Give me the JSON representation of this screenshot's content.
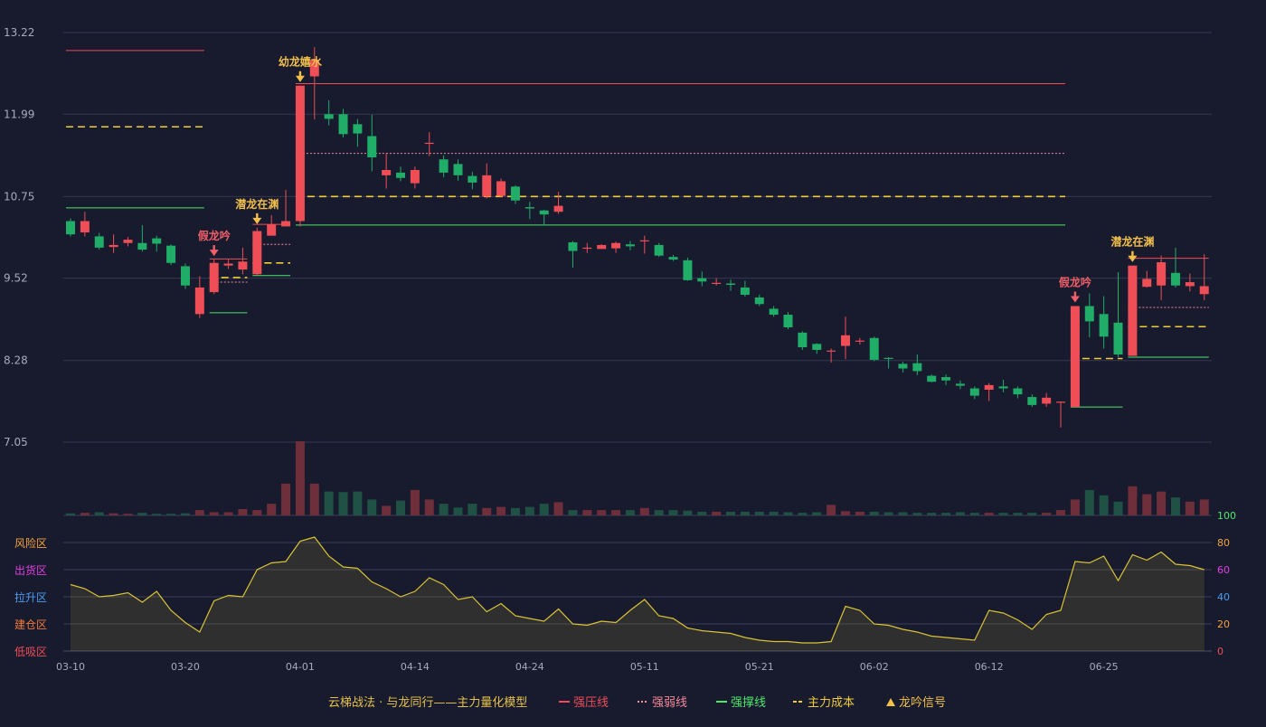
{
  "chart_data": {
    "type": "candlestick",
    "subtitle": "云梯战法 · 与龙同行——主力量化模型",
    "price_axis": {
      "ticks": [
        "13.22",
        "11.99",
        "10.75",
        "9.52",
        "8.28",
        "7.05"
      ],
      "range": [
        7.05,
        13.22
      ]
    },
    "date_labels": [
      "03-10",
      "03-20",
      "04-01",
      "04-14",
      "04-24",
      "05-11",
      "05-21",
      "06-02",
      "06-12",
      "06-25"
    ],
    "date_label_index": [
      0,
      8,
      16,
      24,
      32,
      40,
      48,
      56,
      64,
      72
    ],
    "candles": [
      [
        10.38,
        10.18,
        10.15,
        10.42
      ],
      [
        10.21,
        10.38,
        10.15,
        10.52
      ],
      [
        10.15,
        9.98,
        9.95,
        10.2
      ],
      [
        9.99,
        10.02,
        9.9,
        10.18
      ],
      [
        10.05,
        10.1,
        10.0,
        10.14
      ],
      [
        10.05,
        9.95,
        9.92,
        10.32
      ],
      [
        10.12,
        10.04,
        9.92,
        10.16
      ],
      [
        10.01,
        9.75,
        9.72,
        10.03
      ],
      [
        9.7,
        9.41,
        9.36,
        9.74
      ],
      [
        8.98,
        9.38,
        8.92,
        9.55
      ],
      [
        9.31,
        9.75,
        9.28,
        9.8
      ],
      [
        9.71,
        9.74,
        9.66,
        9.8
      ],
      [
        9.65,
        9.77,
        9.58,
        9.98
      ],
      [
        9.58,
        10.23,
        9.56,
        10.28
      ],
      [
        10.16,
        10.33,
        10.16,
        10.47
      ],
      [
        10.3,
        10.38,
        10.3,
        10.85
      ],
      [
        10.38,
        12.42,
        10.3,
        12.42
      ],
      [
        12.56,
        12.81,
        11.91,
        13.0
      ],
      [
        11.99,
        11.92,
        11.82,
        12.2
      ],
      [
        11.99,
        11.69,
        11.64,
        12.07
      ],
      [
        11.84,
        11.7,
        11.5,
        11.92
      ],
      [
        11.66,
        11.34,
        11.13,
        11.98
      ],
      [
        11.07,
        11.15,
        10.87,
        11.4
      ],
      [
        11.11,
        11.03,
        10.98,
        11.2
      ],
      [
        10.95,
        11.15,
        10.87,
        11.2
      ],
      [
        11.55,
        11.56,
        11.36,
        11.72
      ],
      [
        11.31,
        11.11,
        11.04,
        11.37
      ],
      [
        11.24,
        11.07,
        10.99,
        11.31
      ],
      [
        11.06,
        10.96,
        10.86,
        11.12
      ],
      [
        10.75,
        11.07,
        10.72,
        11.25
      ],
      [
        10.76,
        10.98,
        10.74,
        11.02
      ],
      [
        10.9,
        10.69,
        10.64,
        10.92
      ],
      [
        10.59,
        10.57,
        10.41,
        10.67
      ],
      [
        10.54,
        10.48,
        10.31,
        10.55
      ],
      [
        10.52,
        10.61,
        10.49,
        10.82
      ],
      [
        10.06,
        9.93,
        9.68,
        10.08
      ],
      [
        9.98,
        9.98,
        9.9,
        10.05
      ],
      [
        9.96,
        10.02,
        9.98,
        10.03
      ],
      [
        9.97,
        10.05,
        9.9,
        10.07
      ],
      [
        10.03,
        10.0,
        9.94,
        10.08
      ],
      [
        10.09,
        10.09,
        9.89,
        10.16
      ],
      [
        10.02,
        9.86,
        9.84,
        10.05
      ],
      [
        9.84,
        9.8,
        9.78,
        9.87
      ],
      [
        9.79,
        9.49,
        9.48,
        9.83
      ],
      [
        9.52,
        9.47,
        9.4,
        9.62
      ],
      [
        9.44,
        9.45,
        9.41,
        9.52
      ],
      [
        9.44,
        9.42,
        9.33,
        9.5
      ],
      [
        9.38,
        9.27,
        9.24,
        9.48
      ],
      [
        9.23,
        9.13,
        9.1,
        9.27
      ],
      [
        9.06,
        8.97,
        8.94,
        9.1
      ],
      [
        8.97,
        8.78,
        8.75,
        9.01
      ],
      [
        8.7,
        8.48,
        8.44,
        8.72
      ],
      [
        8.53,
        8.44,
        8.38,
        8.54
      ],
      [
        8.43,
        8.43,
        8.25,
        8.46
      ],
      [
        8.5,
        8.66,
        8.3,
        8.94
      ],
      [
        8.57,
        8.58,
        8.52,
        8.62
      ],
      [
        8.62,
        8.29,
        8.27,
        8.64
      ],
      [
        8.32,
        8.31,
        8.16,
        8.33
      ],
      [
        8.23,
        8.16,
        8.1,
        8.26
      ],
      [
        8.24,
        8.12,
        8.06,
        8.37
      ],
      [
        8.05,
        7.96,
        7.95,
        8.07
      ],
      [
        8.03,
        7.98,
        7.91,
        8.07
      ],
      [
        7.93,
        7.9,
        7.85,
        7.98
      ],
      [
        7.86,
        7.75,
        7.7,
        7.89
      ],
      [
        7.84,
        7.91,
        7.67,
        7.94
      ],
      [
        7.89,
        7.86,
        7.8,
        7.99
      ],
      [
        7.86,
        7.77,
        7.71,
        7.89
      ],
      [
        7.73,
        7.61,
        7.58,
        7.77
      ],
      [
        7.63,
        7.72,
        7.58,
        7.79
      ],
      [
        7.66,
        7.66,
        7.27,
        7.66
      ],
      [
        7.58,
        9.1,
        7.58,
        9.1
      ],
      [
        9.1,
        8.87,
        8.63,
        9.29
      ],
      [
        8.98,
        8.64,
        8.46,
        9.25
      ],
      [
        8.85,
        8.37,
        8.33,
        9.61
      ],
      [
        8.35,
        9.71,
        8.35,
        9.71
      ],
      [
        9.39,
        9.51,
        9.38,
        9.63
      ],
      [
        9.41,
        9.76,
        9.19,
        9.86
      ],
      [
        9.6,
        9.41,
        9.38,
        9.98
      ],
      [
        9.4,
        9.46,
        9.32,
        9.59
      ],
      [
        9.28,
        9.4,
        9.19,
        9.88
      ]
    ],
    "volume": [
      4,
      5,
      6,
      4,
      3,
      5,
      3,
      3,
      4,
      10,
      6,
      6,
      12,
      10,
      22,
      60,
      140,
      60,
      45,
      44,
      45,
      30,
      18,
      28,
      48,
      30,
      22,
      15,
      22,
      14,
      16,
      14,
      16,
      22,
      25,
      10,
      10,
      10,
      10,
      10,
      14,
      10,
      10,
      9,
      7,
      7,
      7,
      7,
      7,
      7,
      6,
      5,
      6,
      20,
      8,
      7,
      7,
      6,
      6,
      5,
      5,
      5,
      6,
      5,
      5,
      5,
      5,
      5,
      5,
      10,
      30,
      48,
      38,
      26,
      55,
      40,
      45,
      34,
      26,
      30
    ],
    "indicator_axis_right": [
      "100",
      "80",
      "60",
      "40",
      "20",
      "0"
    ],
    "indicator_zones": [
      "风险区",
      "出货区",
      "拉升区",
      "建仓区",
      "低吸区"
    ],
    "indicator_values": [
      49,
      46,
      40,
      41,
      43,
      36,
      44,
      30,
      21,
      14,
      37,
      41,
      40,
      60,
      65,
      66,
      81,
      84,
      70,
      62,
      61,
      51,
      46,
      40,
      44,
      54,
      49,
      38,
      40,
      29,
      35,
      26,
      24,
      22,
      31,
      20,
      19,
      22,
      21,
      30,
      38,
      26,
      24,
      17,
      15,
      14,
      13,
      10,
      8,
      7,
      7,
      6,
      6,
      7,
      33,
      30,
      20,
      19,
      16,
      14,
      11,
      10,
      9,
      8,
      30,
      28,
      23,
      16,
      27,
      30,
      66,
      65,
      70,
      52,
      71,
      67,
      73,
      64,
      63,
      60
    ],
    "signals": [
      {
        "label": "假龙吟",
        "index": 10,
        "color": "#ef5f68"
      },
      {
        "label": "潜龙在渊",
        "index": 13,
        "color": "#f2c04a"
      },
      {
        "label": "幼龙嬉水",
        "index": 16,
        "color": "#f2c04a"
      },
      {
        "label": "假龙吟",
        "index": 70,
        "color": "#ef5f68"
      },
      {
        "label": "潜龙在渊",
        "index": 74,
        "color": "#f2c04a"
      }
    ],
    "level_lines": [
      {
        "type": "strong_pressure",
        "from": 0,
        "to": 9,
        "value": 12.95
      },
      {
        "type": "main_cost",
        "from": 0,
        "to": 9,
        "value": 11.8
      },
      {
        "type": "strong_support",
        "from": 0,
        "to": 9,
        "value": 10.58
      },
      {
        "type": "weak",
        "from": 10,
        "to": 12,
        "value": 9.46
      },
      {
        "type": "main_cost",
        "from": 10,
        "to": 12,
        "value": 9.53
      },
      {
        "type": "strong_pressure",
        "from": 10,
        "to": 12,
        "value": 9.81
      },
      {
        "type": "strong_support",
        "from": 10,
        "to": 12,
        "value": 9.0
      },
      {
        "type": "strong_pressure",
        "from": 13,
        "to": 15,
        "value": 10.33
      },
      {
        "type": "weak",
        "from": 13,
        "to": 15,
        "value": 10.03
      },
      {
        "type": "main_cost",
        "from": 13,
        "to": 15,
        "value": 9.75
      },
      {
        "type": "strong_support",
        "from": 13,
        "to": 15,
        "value": 9.56
      },
      {
        "type": "strong_pressure",
        "from": 16,
        "to": 69,
        "value": 12.45
      },
      {
        "type": "weak",
        "from": 16,
        "to": 69,
        "value": 11.4
      },
      {
        "type": "main_cost",
        "from": 16,
        "to": 69,
        "value": 10.75
      },
      {
        "type": "strong_support",
        "from": 16,
        "to": 69,
        "value": 10.32
      },
      {
        "type": "main_cost",
        "from": 70,
        "to": 73,
        "value": 8.31
      },
      {
        "type": "strong_support",
        "from": 70,
        "to": 73,
        "value": 7.58
      },
      {
        "type": "strong_pressure",
        "from": 74,
        "to": 79,
        "value": 9.82
      },
      {
        "type": "weak",
        "from": 74,
        "to": 79,
        "value": 9.08
      },
      {
        "type": "main_cost",
        "from": 74,
        "to": 79,
        "value": 8.79
      },
      {
        "type": "strong_support",
        "from": 74,
        "to": 79,
        "value": 8.33
      }
    ],
    "legend": [
      {
        "label": "强压线",
        "color": "#ef4e57",
        "style": "solid"
      },
      {
        "label": "强弱线",
        "color": "#f48a97",
        "style": "dotted"
      },
      {
        "label": "强撑线",
        "color": "#4ee86b",
        "style": "solid"
      },
      {
        "label": "主力成本",
        "color": "#f0cc3a",
        "style": "dashed"
      },
      {
        "label": "龙吟信号",
        "color": "#f0c04a",
        "style": "triangle"
      }
    ],
    "colors": {
      "up": "#ef4e57",
      "down": "#1fad68",
      "indicator": "#d9c334",
      "background": "#181a2e"
    }
  }
}
